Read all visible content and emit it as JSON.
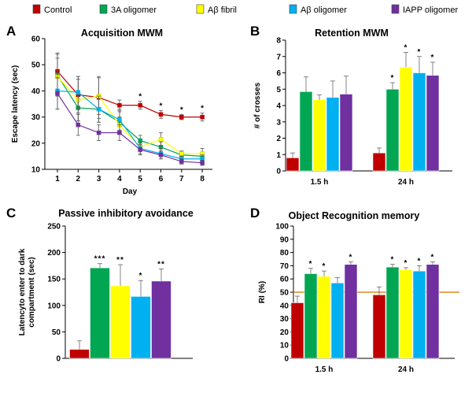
{
  "legend": [
    {
      "label": "Control",
      "color": "#c00000"
    },
    {
      "label": "3A oligomer",
      "color": "#00a651"
    },
    {
      "label": "Aβ fibril",
      "color": "#ffff00"
    },
    {
      "label": "Aβ oligomer",
      "color": "#00b0f0"
    },
    {
      "label": "IAPP oligomer",
      "color": "#7030a0"
    }
  ],
  "chart_data": [
    {
      "panel": "A",
      "type": "line",
      "title": "Acquisition MWM",
      "xlabel": "Day",
      "ylabel": "Escape latency (sec)",
      "x": [
        1,
        2,
        3,
        4,
        5,
        6,
        7,
        8
      ],
      "ylim": [
        10,
        60
      ],
      "yticks": [
        10,
        20,
        30,
        40,
        50,
        60
      ],
      "series": [
        {
          "name": "Control",
          "values": [
            47.5,
            38.5,
            37.5,
            34.5,
            34.5,
            31,
            30,
            30
          ],
          "errors": [
            7,
            7,
            8,
            2,
            1.5,
            1.5,
            1,
            1.5
          ]
        },
        {
          "name": "3A oligomer",
          "values": [
            46,
            33.5,
            33,
            28,
            21,
            18.5,
            15.5,
            15
          ],
          "errors": [
            8,
            5,
            5,
            4,
            2,
            2,
            1,
            1.5
          ]
        },
        {
          "name": "Aβ fibril",
          "values": [
            45.5,
            36.5,
            38,
            27,
            18.5,
            21.5,
            16,
            16
          ],
          "errors": [
            7,
            8,
            7,
            3,
            1.5,
            2.5,
            1,
            2
          ]
        },
        {
          "name": "Aβ oligomer",
          "values": [
            40,
            39.5,
            33,
            29,
            18,
            16,
            14,
            14
          ],
          "errors": [
            7,
            6,
            5,
            4,
            2,
            2,
            1,
            1.5
          ]
        },
        {
          "name": "IAPP oligomer",
          "values": [
            39,
            27,
            24,
            24,
            17.5,
            15.5,
            13,
            12.5
          ],
          "errors": [
            6,
            4,
            3,
            3,
            2,
            1.5,
            1,
            1
          ]
        }
      ],
      "annotations": [
        {
          "text": "*",
          "x": 5
        },
        {
          "text": "*",
          "x": 6
        },
        {
          "text": "*",
          "x": 7
        },
        {
          "text": "*",
          "x": 8
        }
      ]
    },
    {
      "panel": "B",
      "type": "bar",
      "title": "Retention MWM",
      "ylabel": "# of crosses",
      "categories": [
        "1.5 h",
        "24 h"
      ],
      "ylim": [
        0,
        8
      ],
      "yticks": [
        0,
        1,
        2,
        3,
        4,
        5,
        6,
        7,
        8
      ],
      "series": [
        {
          "name": "Control",
          "values": [
            0.8,
            1.1
          ],
          "errors": [
            0.3,
            0.3
          ]
        },
        {
          "name": "3A oligomer",
          "values": [
            4.85,
            5.0
          ],
          "errors": [
            0.9,
            0.4
          ]
        },
        {
          "name": "Aβ fibril",
          "values": [
            4.35,
            6.35
          ],
          "errors": [
            0.3,
            0.9
          ]
        },
        {
          "name": "Aβ oligomer",
          "values": [
            4.5,
            6.0
          ],
          "errors": [
            1.0,
            1.0
          ]
        },
        {
          "name": "IAPP oligomer",
          "values": [
            4.7,
            5.85
          ],
          "errors": [
            1.1,
            0.8
          ]
        }
      ],
      "significance": [
        [
          "",
          "",
          "",
          "",
          ""
        ],
        [
          "",
          "*",
          "*",
          "*",
          "*"
        ]
      ]
    },
    {
      "panel": "C",
      "type": "bar",
      "title": "Passive inhibitory avoidance",
      "ylabel": "Latencyto enter to dark compartment (sec)",
      "ylabel_lines": [
        "Latencyto enter to dark",
        "compartment (sec)"
      ],
      "categories": [
        ""
      ],
      "ylim": [
        0,
        250
      ],
      "yticks": [
        0,
        50,
        100,
        150,
        200,
        250
      ],
      "series": [
        {
          "name": "Control",
          "values": [
            17
          ],
          "errors": [
            16
          ]
        },
        {
          "name": "3A oligomer",
          "values": [
            171
          ],
          "errors": [
            8
          ]
        },
        {
          "name": "Aβ fibril",
          "values": [
            137
          ],
          "errors": [
            40
          ]
        },
        {
          "name": "Aβ oligomer",
          "values": [
            117
          ],
          "errors": [
            30
          ]
        },
        {
          "name": "IAPP oligomer",
          "values": [
            146
          ],
          "errors": [
            23
          ]
        }
      ],
      "significance": [
        [
          "",
          "***",
          "**",
          "*",
          "**"
        ]
      ]
    },
    {
      "panel": "D",
      "type": "bar",
      "title": "Object Recognition memory",
      "ylabel": "RI (%)",
      "categories": [
        "1.5 h",
        "24 h"
      ],
      "ylim": [
        0,
        100
      ],
      "yticks": [
        0,
        10,
        20,
        30,
        40,
        50,
        60,
        70,
        80,
        90,
        100
      ],
      "reference_line": {
        "value": 50,
        "color": "#e08a1e"
      },
      "series": [
        {
          "name": "Control",
          "values": [
            42,
            48
          ],
          "errors": [
            5,
            6
          ]
        },
        {
          "name": "3A oligomer",
          "values": [
            64,
            69
          ],
          "errors": [
            4,
            2
          ]
        },
        {
          "name": "Aβ fibril",
          "values": [
            62,
            67
          ],
          "errors": [
            4,
            1.5
          ]
        },
        {
          "name": "Aβ oligomer",
          "values": [
            57,
            66
          ],
          "errors": [
            4,
            4
          ]
        },
        {
          "name": "IAPP oligomer",
          "values": [
            71,
            71
          ],
          "errors": [
            2,
            2
          ]
        }
      ],
      "significance": [
        [
          "",
          "*",
          "*",
          "",
          "*"
        ],
        [
          "",
          "*",
          "*",
          "*",
          "*"
        ]
      ]
    }
  ]
}
